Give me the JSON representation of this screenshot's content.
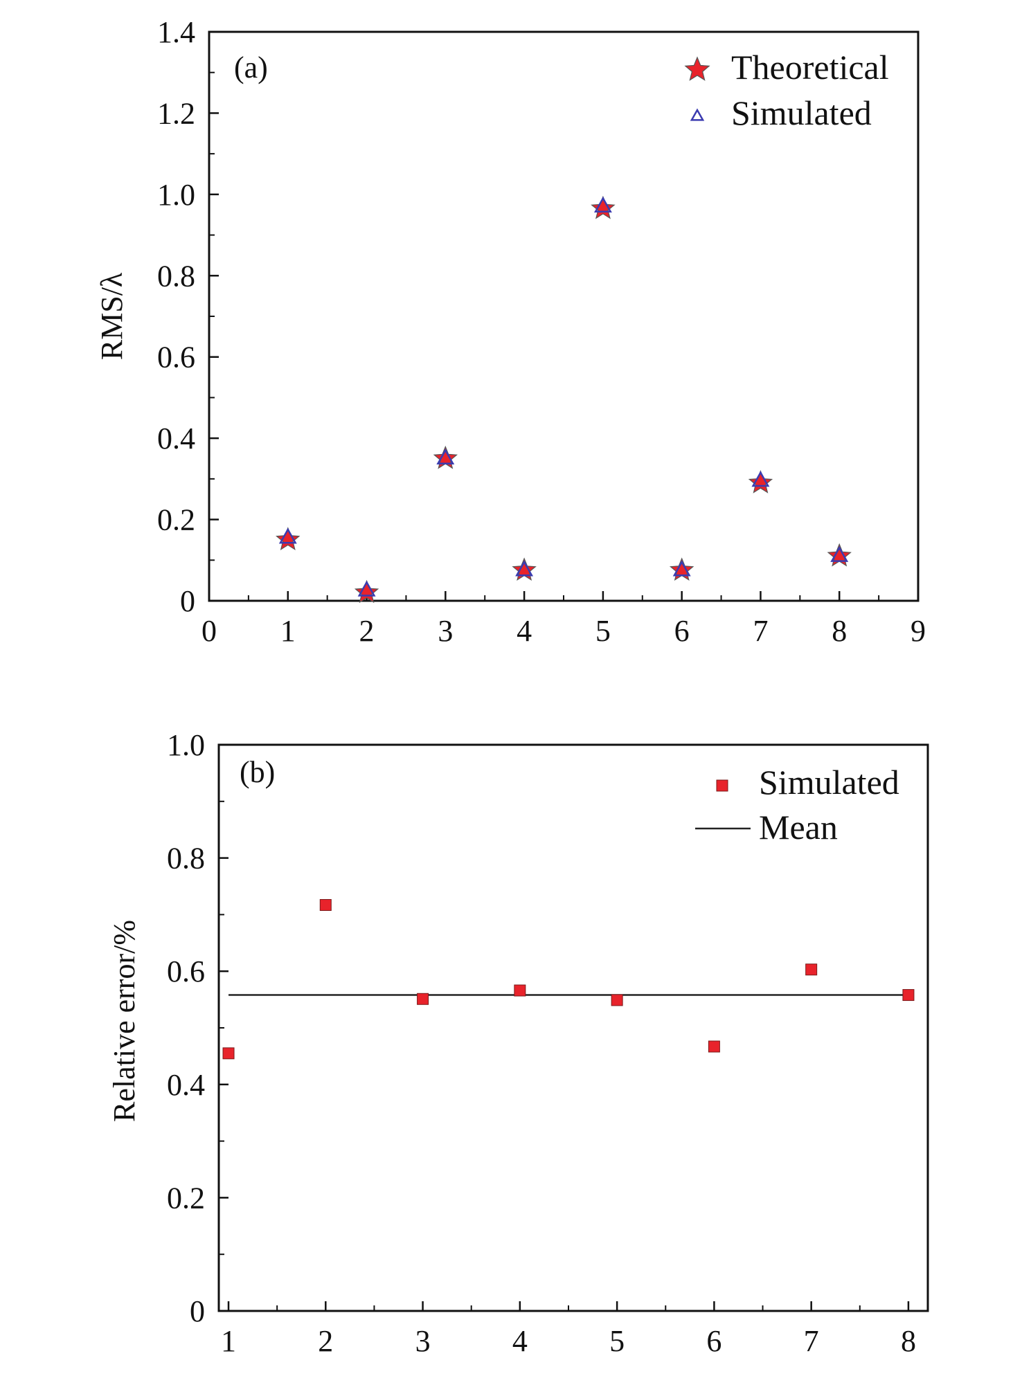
{
  "chart_data": [
    {
      "type": "scatter",
      "panel_label": "(a)",
      "xlabel": "",
      "ylabel": "RMS/λ",
      "xlim": [
        0,
        9
      ],
      "ylim": [
        0,
        1.4
      ],
      "x_ticks": [
        "0",
        "1",
        "2",
        "3",
        "4",
        "5",
        "6",
        "7",
        "8",
        "9"
      ],
      "y_ticks": [
        "0",
        "0.2",
        "0.4",
        "0.6",
        "0.8",
        "1.0",
        "1.2",
        "1.4"
      ],
      "legend_position": "top-right",
      "series": [
        {
          "name": "Theoretical",
          "marker": "star",
          "color": "#e8232b",
          "x": [
            1,
            2,
            3,
            4,
            5,
            6,
            7,
            8
          ],
          "y": [
            0.15,
            0.02,
            0.35,
            0.075,
            0.965,
            0.075,
            0.29,
            0.11
          ]
        },
        {
          "name": "Simulated",
          "marker": "open-triangle",
          "color": "#3b3bb0",
          "x": [
            1,
            2,
            3,
            4,
            5,
            6,
            7,
            8
          ],
          "y": [
            0.155,
            0.025,
            0.35,
            0.075,
            0.97,
            0.075,
            0.295,
            0.11
          ]
        }
      ]
    },
    {
      "type": "scatter",
      "panel_label": "(b)",
      "xlabel": "",
      "ylabel": "Relative error/%",
      "xlim": [
        0.9,
        8.2
      ],
      "ylim": [
        0,
        1.0
      ],
      "x_ticks": [
        "1",
        "2",
        "3",
        "4",
        "5",
        "6",
        "7",
        "8"
      ],
      "y_ticks": [
        "0",
        "0.2",
        "0.4",
        "0.6",
        "0.8",
        "1.0"
      ],
      "legend_position": "top-right",
      "series": [
        {
          "name": "Simulated",
          "marker": "square",
          "color": "#e8232b",
          "x": [
            1,
            2,
            3,
            4,
            5,
            6,
            7,
            8
          ],
          "y": [
            0.455,
            0.717,
            0.551,
            0.566,
            0.549,
            0.467,
            0.603,
            0.558
          ]
        },
        {
          "name": "Mean",
          "marker": "line",
          "color": "#222222",
          "x": [
            1,
            8
          ],
          "y": [
            0.558,
            0.558
          ]
        }
      ]
    }
  ]
}
